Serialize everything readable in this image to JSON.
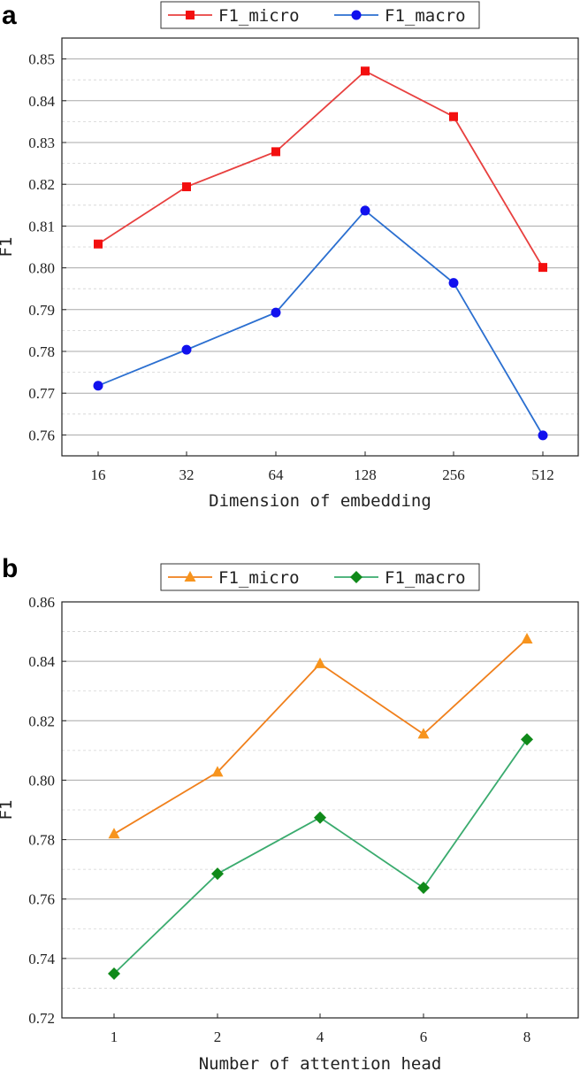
{
  "chart_data": [
    {
      "panel": "a",
      "type": "line",
      "title": "",
      "xlabel": "Dimension of embedding",
      "ylabel": "F1",
      "categories": [
        "16",
        "32",
        "64",
        "128",
        "256",
        "512"
      ],
      "ylim": [
        0.755,
        0.855
      ],
      "yticks": [
        "0.76",
        "0.77",
        "0.78",
        "0.79",
        "0.80",
        "0.81",
        "0.82",
        "0.83",
        "0.84",
        "0.85"
      ],
      "grid": true,
      "legend": "top",
      "series": [
        {
          "name": "F1_micro",
          "marker": "square",
          "color": "#e8403f",
          "marker_color": "#f30f0f",
          "values": [
            0.8057,
            0.8194,
            0.8278,
            0.8471,
            0.8362,
            0.8001
          ]
        },
        {
          "name": "F1_macro",
          "marker": "circle",
          "color": "#2b6fd0",
          "marker_color": "#1111ee",
          "values": [
            0.7718,
            0.7804,
            0.7893,
            0.8137,
            0.7964,
            0.7599
          ]
        }
      ]
    },
    {
      "panel": "b",
      "type": "line",
      "title": "",
      "xlabel": "Number of attention head",
      "ylabel": "F1",
      "categories": [
        "1",
        "2",
        "4",
        "6",
        "8"
      ],
      "ylim": [
        0.72,
        0.86
      ],
      "yticks": [
        "0.72",
        "0.74",
        "0.76",
        "0.78",
        "0.80",
        "0.82",
        "0.84",
        "0.86"
      ],
      "grid": true,
      "legend": "top",
      "series": [
        {
          "name": "F1_micro",
          "marker": "triangle",
          "color": "#f0801c",
          "marker_color": "#f7941d",
          "values": [
            0.7819,
            0.8027,
            0.8392,
            0.8155,
            0.8475
          ]
        },
        {
          "name": "F1_macro",
          "marker": "diamond",
          "color": "#3aab6e",
          "marker_color": "#108a1a",
          "values": [
            0.7349,
            0.7685,
            0.7874,
            0.7638,
            0.8137
          ]
        }
      ]
    }
  ]
}
